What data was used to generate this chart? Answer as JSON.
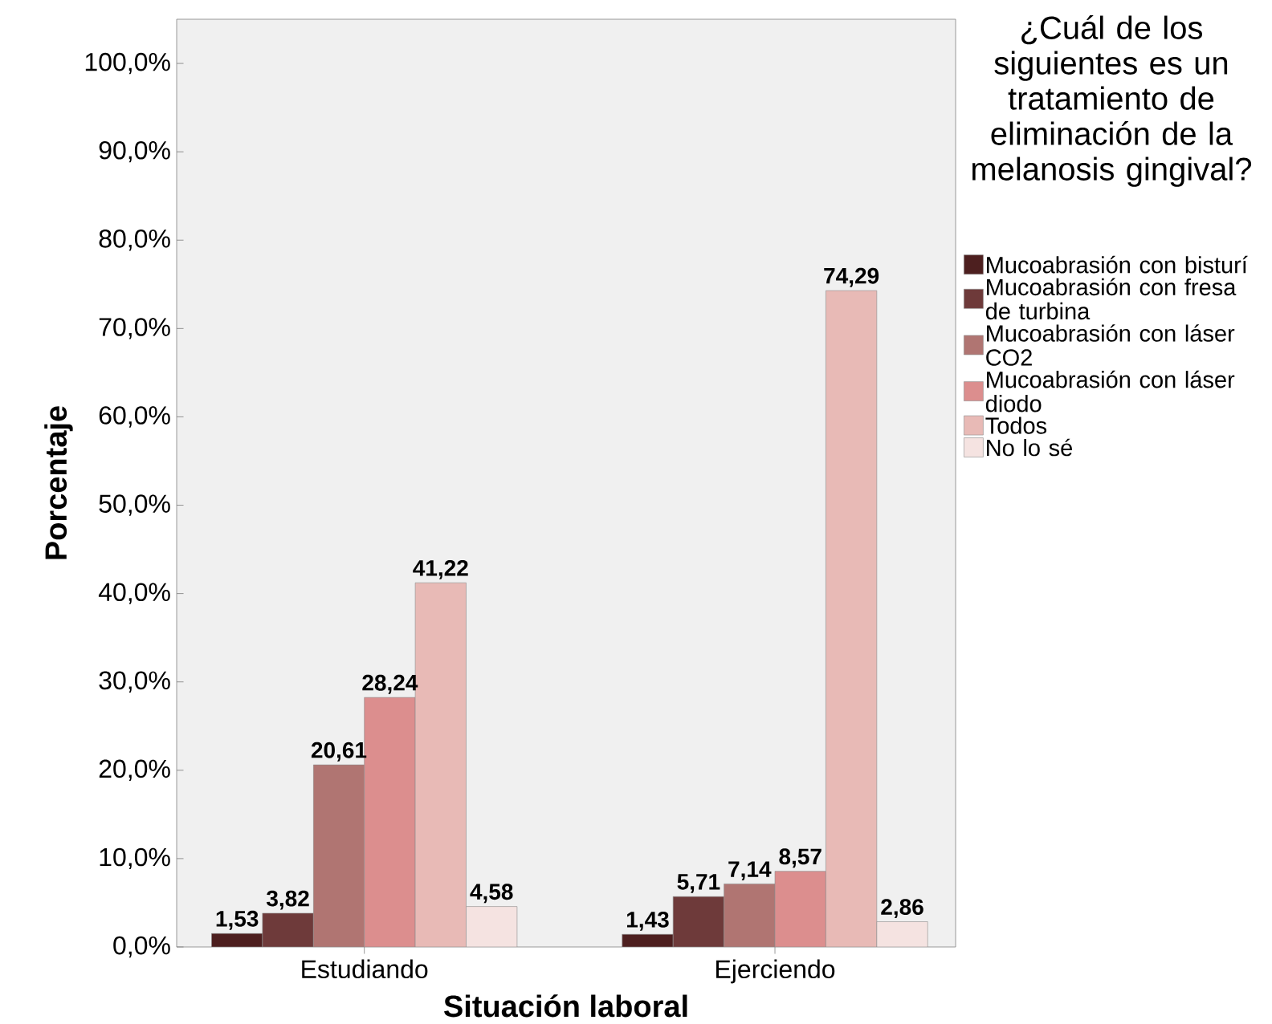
{
  "chart_data": {
    "type": "bar",
    "xlabel": "Situación laboral",
    "ylabel": "Porcentaje",
    "legend_title": "¿Cuál de los siguientes es un tratamiento de eliminación de la melanosis gingival?",
    "legend": "right",
    "categories": [
      "Estudiando",
      "Ejerciendo"
    ],
    "series": [
      {
        "name": "Mucoabrasión con bisturí",
        "color": "#4d1f1f",
        "values": [
          1.53,
          1.43
        ],
        "value_labels": [
          "1,53",
          "1,43"
        ]
      },
      {
        "name": "Mucoabrasión con fresa de turbina",
        "color": "#6e3a3a",
        "values": [
          3.82,
          5.71
        ],
        "value_labels": [
          "3,82",
          "5,71"
        ]
      },
      {
        "name": "Mucoabrasión con láser CO2",
        "color": "#b07572",
        "values": [
          20.61,
          7.14
        ],
        "value_labels": [
          "20,61",
          "7,14"
        ]
      },
      {
        "name": "Mucoabrasión con láser diodo",
        "color": "#dc8e8e",
        "values": [
          28.24,
          8.57
        ],
        "value_labels": [
          "28,24",
          "8,57"
        ]
      },
      {
        "name": "Todos",
        "color": "#e8bab6",
        "values": [
          41.22,
          74.29
        ],
        "value_labels": [
          "41,22",
          "74,29"
        ]
      },
      {
        "name": "No lo sé",
        "color": "#f5e3e1",
        "values": [
          4.58,
          2.86
        ],
        "value_labels": [
          "4,58",
          "2,86"
        ]
      }
    ],
    "ylim": [
      0,
      105
    ],
    "yticks": [
      {
        "value": 0,
        "label": "0,0%"
      },
      {
        "value": 10,
        "label": "10,0%"
      },
      {
        "value": 20,
        "label": "20,0%"
      },
      {
        "value": 30,
        "label": "30,0%"
      },
      {
        "value": 40,
        "label": "40,0%"
      },
      {
        "value": 50,
        "label": "50,0%"
      },
      {
        "value": 60,
        "label": "60,0%"
      },
      {
        "value": 70,
        "label": "70,0%"
      },
      {
        "value": 80,
        "label": "80,0%"
      },
      {
        "value": 90,
        "label": "90,0%"
      },
      {
        "value": 100,
        "label": "100,0%"
      }
    ]
  }
}
